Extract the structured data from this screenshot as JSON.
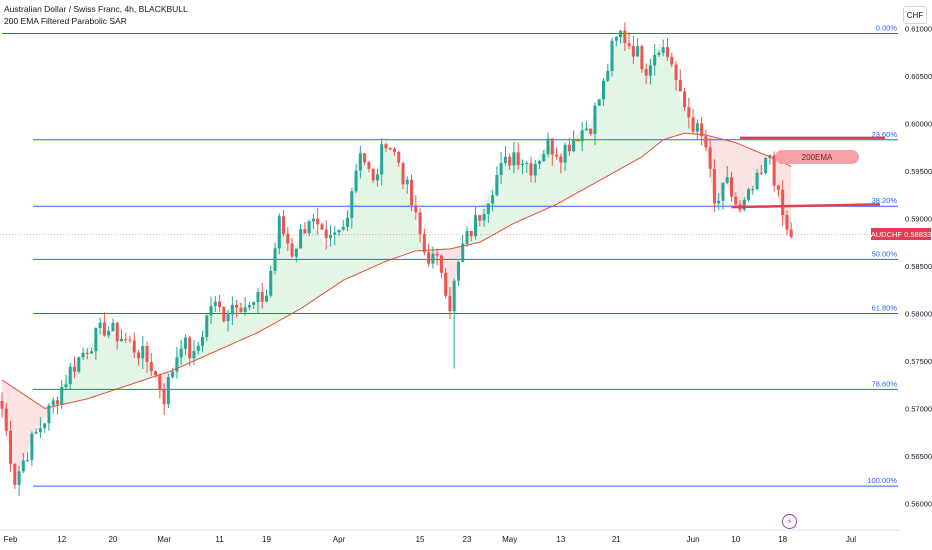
{
  "header": {
    "title": "Australian Dollar / Swiss Franc, 4h, BLACKBULL",
    "indicator": "200 EMA Filtered Parabolic SAR"
  },
  "currency": "CHF",
  "last_price": {
    "symbol": "AUDCHF",
    "value": "0.58833"
  },
  "ema_label": "200EMA",
  "colors": {
    "up": "#26a69a",
    "down": "#ef5350",
    "ema": "#e74c3c",
    "fib": "#2962ff",
    "annotation": "#e03d52",
    "bull_fill": "#d9f2dc",
    "bear_fill": "#fbd9d9"
  },
  "icons": {
    "event": "lightning-icon"
  },
  "chart_data": {
    "type": "candlestick",
    "title": "Australian Dollar / Swiss Franc, 4h, BLACKBULL",
    "ylim": [
      0.5595,
      0.6105
    ],
    "yticks": [
      "0.61000",
      "0.60500",
      "0.60000",
      "0.59500",
      "0.59000",
      "0.58500",
      "0.58000",
      "0.57500",
      "0.57000",
      "0.56500",
      "0.56000"
    ],
    "x_index_range": [
      0,
      203
    ],
    "xticks": [
      {
        "label": "Feb",
        "i": 2
      },
      {
        "label": "12",
        "i": 14
      },
      {
        "label": "20",
        "i": 26
      },
      {
        "label": "Mar",
        "i": 38
      },
      {
        "label": "11",
        "i": 51
      },
      {
        "label": "19",
        "i": 62
      },
      {
        "label": "Apr",
        "i": 79
      },
      {
        "label": "15",
        "i": 98
      },
      {
        "label": "23",
        "i": 109
      },
      {
        "label": "May",
        "i": 119
      },
      {
        "label": "13",
        "i": 131
      },
      {
        "label": "21",
        "i": 144
      },
      {
        "label": "Jun",
        "i": 162
      },
      {
        "label": "10",
        "i": 172
      },
      {
        "label": "18",
        "i": 183
      },
      {
        "label": "Jul",
        "i": 199
      }
    ],
    "fibonacci": [
      {
        "label": "0.00%",
        "price": 0.6095
      },
      {
        "label": "23.60%",
        "price": 0.5983
      },
      {
        "label": "38.20%",
        "price": 0.5913
      },
      {
        "label": "50.00%",
        "price": 0.5857
      },
      {
        "label": "61.80%",
        "price": 0.58
      },
      {
        "label": "78.60%",
        "price": 0.572
      },
      {
        "label": "100.00%",
        "price": 0.5618
      }
    ],
    "anchors": [
      [
        0,
        0.57
      ],
      [
        3,
        0.5625
      ],
      [
        7,
        0.5665
      ],
      [
        12,
        0.5705
      ],
      [
        16,
        0.574
      ],
      [
        20,
        0.5765
      ],
      [
        24,
        0.5785
      ],
      [
        28,
        0.5775
      ],
      [
        32,
        0.576
      ],
      [
        35,
        0.5745
      ],
      [
        38,
        0.5712
      ],
      [
        42,
        0.5772
      ],
      [
        45,
        0.5752
      ],
      [
        49,
        0.581
      ],
      [
        52,
        0.58
      ],
      [
        55,
        0.5815
      ],
      [
        58,
        0.5805
      ],
      [
        62,
        0.582
      ],
      [
        65,
        0.5895
      ],
      [
        68,
        0.5865
      ],
      [
        72,
        0.5902
      ],
      [
        76,
        0.587
      ],
      [
        80,
        0.589
      ],
      [
        84,
        0.5975
      ],
      [
        87,
        0.5935
      ],
      [
        90,
        0.5985
      ],
      [
        93,
        0.596
      ],
      [
        96,
        0.5915
      ],
      [
        99,
        0.5865
      ],
      [
        103,
        0.5848
      ],
      [
        105,
        0.581
      ],
      [
        108,
        0.587
      ],
      [
        112,
        0.5905
      ],
      [
        116,
        0.5945
      ],
      [
        120,
        0.597
      ],
      [
        124,
        0.5955
      ],
      [
        128,
        0.5978
      ],
      [
        131,
        0.597
      ],
      [
        135,
        0.599
      ],
      [
        138,
        0.6
      ],
      [
        141,
        0.604
      ],
      [
        143,
        0.6078
      ],
      [
        145,
        0.6095
      ],
      [
        148,
        0.608
      ],
      [
        151,
        0.606
      ],
      [
        154,
        0.6085
      ],
      [
        157,
        0.6065
      ],
      [
        159,
        0.6025
      ],
      [
        162,
        0.6
      ],
      [
        165,
        0.5975
      ],
      [
        167,
        0.5912
      ],
      [
        170,
        0.5935
      ],
      [
        173,
        0.5905
      ],
      [
        176,
        0.593
      ],
      [
        178,
        0.5945
      ],
      [
        180,
        0.5968
      ],
      [
        182,
        0.592
      ],
      [
        184,
        0.5885
      ],
      [
        185,
        0.5883
      ]
    ],
    "ema_200": [
      [
        0,
        0.573
      ],
      [
        10,
        0.57
      ],
      [
        20,
        0.571
      ],
      [
        30,
        0.5725
      ],
      [
        40,
        0.574
      ],
      [
        50,
        0.576
      ],
      [
        60,
        0.578
      ],
      [
        70,
        0.5805
      ],
      [
        80,
        0.5835
      ],
      [
        90,
        0.5855
      ],
      [
        97,
        0.5866
      ],
      [
        105,
        0.5868
      ],
      [
        112,
        0.5875
      ],
      [
        120,
        0.5895
      ],
      [
        130,
        0.5915
      ],
      [
        140,
        0.594
      ],
      [
        150,
        0.5965
      ],
      [
        155,
        0.5983
      ],
      [
        160,
        0.599
      ],
      [
        165,
        0.5988
      ],
      [
        172,
        0.598
      ],
      [
        180,
        0.5965
      ],
      [
        185,
        0.5955
      ]
    ],
    "annotations": {
      "resistance_line": {
        "i_start": 173,
        "i_end": 205,
        "price": 0.5985
      },
      "ema_cross_line": {
        "i_start": 171,
        "i_end": 205,
        "price": 0.5912,
        "price_end": 0.5915
      },
      "wick_low": {
        "i": 106,
        "price": 0.5742
      }
    }
  }
}
